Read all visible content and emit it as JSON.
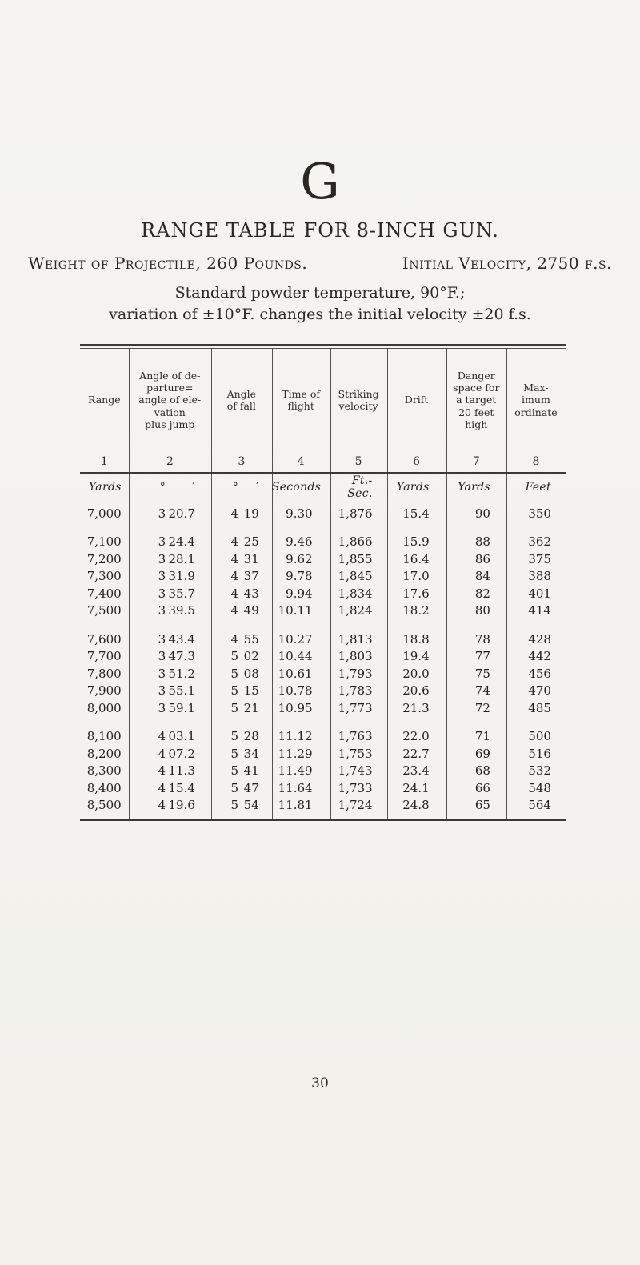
{
  "page": {
    "letter": "G",
    "title": "RANGE TABLE FOR 8-INCH GUN.",
    "weight_label": "Weight of Projectile, 260 Pounds.",
    "velocity_label": "Initial Velocity, 2750 f.s.",
    "condition_line1": "Standard powder temperature, 90°F.;",
    "condition_line2": "variation of ±10°F. changes the initial velocity ±20 f.s.",
    "page_number": "30"
  },
  "table": {
    "columns": [
      {
        "number": "1",
        "label": "Range",
        "unit": "Yards"
      },
      {
        "number": "2",
        "label": "Angle of de-\nparture=\nangle of ele-\nvation\nplus jump",
        "unit_deg": "°",
        "unit_min": "′"
      },
      {
        "number": "3",
        "label": "Angle\nof fall",
        "unit_deg": "°",
        "unit_min": "′"
      },
      {
        "number": "4",
        "label": "Time of\nflight",
        "unit": "Seconds"
      },
      {
        "number": "5",
        "label": "Striking\nvelocity",
        "unit": "Ft.-Sec."
      },
      {
        "number": "6",
        "label": "Drift",
        "unit": "Yards"
      },
      {
        "number": "7",
        "label": "Danger\nspace for\na target\n20 feet\nhigh",
        "unit": "Yards"
      },
      {
        "number": "8",
        "label": "Max-\nimum\nordinate",
        "unit": "Feet"
      }
    ],
    "units_row": [
      "Yards",
      "°",
      "′",
      "°",
      "′",
      "Seconds",
      "Ft.-Sec.",
      "Yards",
      "Yards",
      "Feet"
    ],
    "groups": [
      {
        "rows": [
          [
            "7,000",
            "3",
            "20.7",
            "4",
            "19",
            "9.30",
            "1,876",
            "15.4",
            "90",
            "350"
          ]
        ]
      },
      {
        "rows": [
          [
            "7,100",
            "3",
            "24.4",
            "4",
            "25",
            "9.46",
            "1,866",
            "15.9",
            "88",
            "362"
          ],
          [
            "7,200",
            "3",
            "28.1",
            "4",
            "31",
            "9.62",
            "1,855",
            "16.4",
            "86",
            "375"
          ],
          [
            "7,300",
            "3",
            "31.9",
            "4",
            "37",
            "9.78",
            "1,845",
            "17.0",
            "84",
            "388"
          ],
          [
            "7,400",
            "3",
            "35.7",
            "4",
            "43",
            "9.94",
            "1,834",
            "17.6",
            "82",
            "401"
          ],
          [
            "7,500",
            "3",
            "39.5",
            "4",
            "49",
            "10.11",
            "1,824",
            "18.2",
            "80",
            "414"
          ]
        ]
      },
      {
        "rows": [
          [
            "7,600",
            "3",
            "43.4",
            "4",
            "55",
            "10.27",
            "1,813",
            "18.8",
            "78",
            "428"
          ],
          [
            "7,700",
            "3",
            "47.3",
            "5",
            "02",
            "10.44",
            "1,803",
            "19.4",
            "77",
            "442"
          ],
          [
            "7,800",
            "3",
            "51.2",
            "5",
            "08",
            "10.61",
            "1,793",
            "20.0",
            "75",
            "456"
          ],
          [
            "7,900",
            "3",
            "55.1",
            "5",
            "15",
            "10.78",
            "1,783",
            "20.6",
            "74",
            "470"
          ],
          [
            "8,000",
            "3",
            "59.1",
            "5",
            "21",
            "10.95",
            "1,773",
            "21.3",
            "72",
            "485"
          ]
        ]
      },
      {
        "rows": [
          [
            "8,100",
            "4",
            "03.1",
            "5",
            "28",
            "11.12",
            "1,763",
            "22.0",
            "71",
            "500"
          ],
          [
            "8,200",
            "4",
            "07.2",
            "5",
            "34",
            "11.29",
            "1,753",
            "22.7",
            "69",
            "516"
          ],
          [
            "8,300",
            "4",
            "11.3",
            "5",
            "41",
            "11.49",
            "1,743",
            "23.4",
            "68",
            "532"
          ],
          [
            "8,400",
            "4",
            "15.4",
            "5",
            "47",
            "11.64",
            "1,733",
            "24.1",
            "66",
            "548"
          ],
          [
            "8,500",
            "4",
            "19.6",
            "5",
            "54",
            "11.81",
            "1,724",
            "24.8",
            "65",
            "564"
          ]
        ]
      }
    ]
  }
}
